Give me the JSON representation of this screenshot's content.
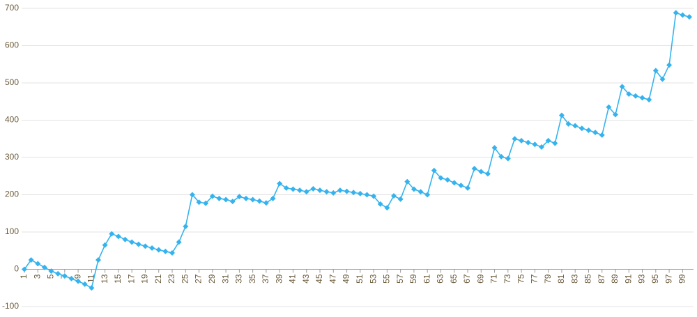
{
  "chart_data": {
    "type": "line",
    "x": [
      1,
      2,
      3,
      4,
      5,
      6,
      7,
      8,
      9,
      10,
      11,
      12,
      13,
      14,
      15,
      16,
      17,
      18,
      19,
      20,
      21,
      22,
      23,
      24,
      25,
      26,
      27,
      28,
      29,
      30,
      31,
      32,
      33,
      34,
      35,
      36,
      37,
      38,
      39,
      40,
      41,
      42,
      43,
      44,
      45,
      46,
      47,
      48,
      49,
      50,
      51,
      52,
      53,
      54,
      55,
      56,
      57,
      58,
      59,
      60,
      61,
      62,
      63,
      64,
      65,
      66,
      67,
      68,
      69,
      70,
      71,
      72,
      73,
      74,
      75,
      76,
      77,
      78,
      79,
      80,
      81,
      82,
      83,
      84,
      85,
      86,
      87,
      88,
      89,
      90,
      91,
      92,
      93,
      94,
      95,
      96,
      97,
      98,
      99,
      100
    ],
    "series": [
      {
        "color": "#35b3ee",
        "values": [
          0,
          25,
          15,
          5,
          -5,
          -12,
          -18,
          -25,
          -32,
          -40,
          -50,
          25,
          65,
          95,
          88,
          80,
          73,
          67,
          62,
          57,
          52,
          48,
          44,
          73,
          115,
          200,
          180,
          177,
          196,
          190,
          187,
          182,
          195,
          190,
          187,
          183,
          178,
          190,
          230,
          218,
          215,
          212,
          208,
          216,
          212,
          208,
          205,
          212,
          209,
          206,
          203,
          200,
          196,
          175,
          165,
          197,
          188,
          235,
          215,
          208,
          200,
          265,
          245,
          240,
          232,
          225,
          218,
          270,
          262,
          256,
          326,
          302,
          297,
          350,
          345,
          340,
          335,
          328,
          345,
          338,
          413,
          390,
          385,
          378,
          373,
          367,
          360,
          435,
          415,
          490,
          470,
          465,
          460,
          455,
          533,
          510,
          548,
          688,
          682,
          677
        ]
      }
    ],
    "xlim": [
      1,
      100
    ],
    "xticks": [
      1,
      3,
      5,
      7,
      9,
      11,
      13,
      15,
      17,
      19,
      21,
      23,
      25,
      27,
      29,
      31,
      33,
      35,
      37,
      39,
      41,
      43,
      45,
      47,
      49,
      51,
      53,
      55,
      57,
      59,
      61,
      63,
      65,
      67,
      69,
      71,
      73,
      75,
      77,
      79,
      81,
      83,
      85,
      87,
      89,
      91,
      93,
      95,
      97,
      99
    ],
    "ylim": [
      -100,
      700
    ],
    "yticks": [
      -100,
      0,
      100,
      200,
      300,
      400,
      500,
      600,
      700
    ],
    "grid": true
  }
}
